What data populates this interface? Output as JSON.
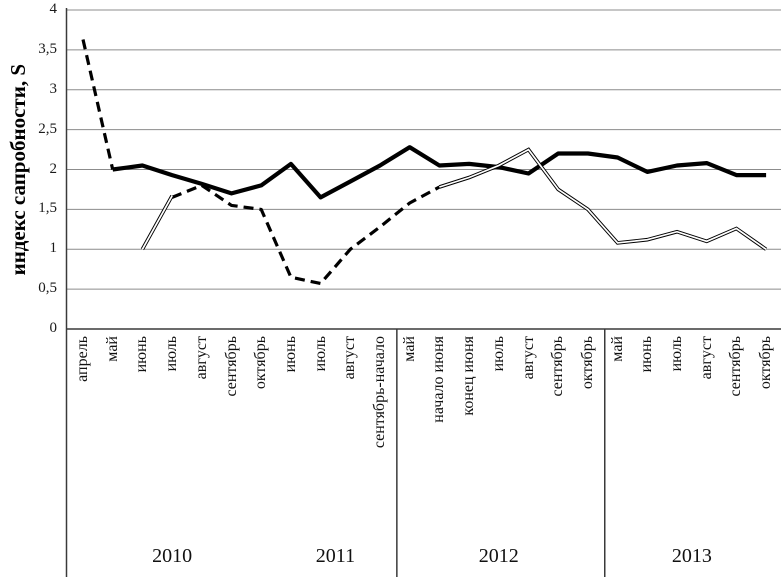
{
  "chart_data": {
    "type": "line",
    "title": "",
    "ylabel": "индекс сапробности, S",
    "xlabel": "",
    "ylim": [
      0,
      4
    ],
    "ytick_step": 0.5,
    "ytick_labels": [
      "0",
      "0,5",
      "1",
      "1,5",
      "2",
      "2,5",
      "3",
      "3,5",
      "4"
    ],
    "grid": true,
    "legend": "none",
    "categories": [
      "апрель",
      "май",
      "июнь",
      "июль",
      "август",
      "сентябрь",
      "октябрь",
      "июнь",
      "июль",
      "август",
      "сентябрь-начало",
      "май",
      "начало июня",
      "конец июня",
      "июль",
      "август",
      "сентябрь",
      "октябрь",
      "май",
      "июнь",
      "июль",
      "август",
      "сентябрь",
      "октябрь"
    ],
    "year_groups": [
      {
        "label": "2010",
        "start": 0,
        "end": 6,
        "separator_after": false
      },
      {
        "label": "2011",
        "start": 7,
        "end": 10,
        "separator_after": true
      },
      {
        "label": "2012",
        "start": 11,
        "end": 17,
        "separator_after": true
      },
      {
        "label": "2013",
        "start": 18,
        "end": 23,
        "separator_after": false
      }
    ],
    "series": [
      {
        "name": "solid-thick-line",
        "style": "solid",
        "color": "#000000",
        "values": [
          null,
          2.0,
          2.05,
          1.93,
          1.82,
          1.7,
          1.8,
          2.07,
          1.65,
          1.85,
          2.05,
          2.28,
          2.05,
          2.07,
          2.03,
          1.95,
          2.2,
          2.2,
          2.15,
          1.97,
          2.05,
          2.08,
          1.93,
          1.93
        ]
      },
      {
        "name": "dashed-line",
        "style": "dashed",
        "color": "#000000",
        "values": [
          3.63,
          2.0,
          null,
          1.65,
          1.8,
          1.55,
          1.5,
          0.65,
          0.57,
          1.0,
          1.28,
          1.58,
          1.78,
          null,
          null,
          null,
          null,
          null,
          null,
          null,
          null,
          null,
          null,
          null
        ]
      },
      {
        "name": "thin-double-outline-line",
        "style": "double-outline",
        "color": "#000000",
        "values": [
          null,
          null,
          1.0,
          1.67,
          null,
          null,
          null,
          null,
          null,
          null,
          null,
          null,
          1.78,
          1.9,
          2.05,
          2.25,
          1.75,
          1.5,
          1.08,
          1.12,
          1.22,
          1.1,
          1.26,
          1.0
        ]
      }
    ],
    "colors": {
      "line": "#000000",
      "grid": "#8c8c8c",
      "axis": "#3a3a3a",
      "background": "#ffffff"
    }
  }
}
